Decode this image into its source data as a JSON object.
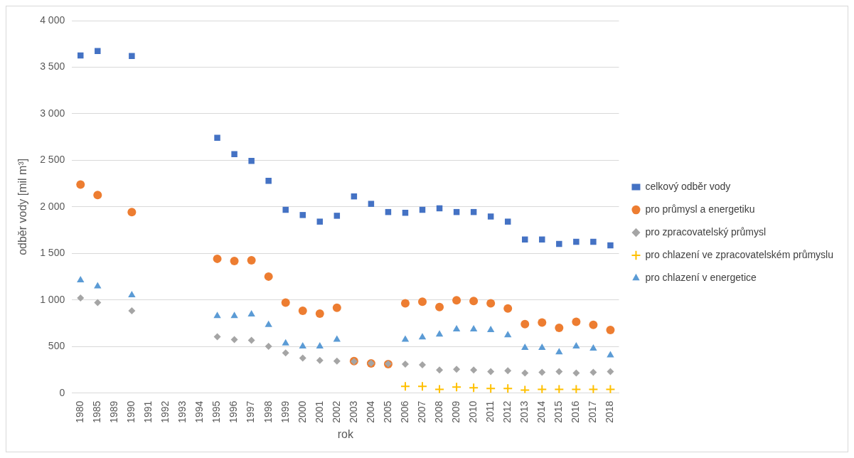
{
  "chart_data": {
    "type": "scatter",
    "xlabel": "rok",
    "ylabel": "odběr vody [mil m³]",
    "categories": [
      "1980",
      "1985",
      "1989",
      "1990",
      "1991",
      "1992",
      "1993",
      "1994",
      "1995",
      "1996",
      "1997",
      "1998",
      "1999",
      "2000",
      "2001",
      "2002",
      "2003",
      "2004",
      "2005",
      "2006",
      "2007",
      "2008",
      "2009",
      "2010",
      "2011",
      "2012",
      "2013",
      "2014",
      "2015",
      "2016",
      "2017",
      "2018"
    ],
    "series": [
      {
        "name": "celkový odběr vody",
        "color": "#4472c4",
        "marker": "square",
        "values": [
          3625,
          3673,
          null,
          3620,
          null,
          null,
          null,
          null,
          2741,
          2566,
          2494,
          2279,
          1968,
          1912,
          1841,
          1904,
          2112,
          2032,
          1944,
          1936,
          1968,
          1984,
          1944,
          1944,
          1896,
          1841,
          1649,
          1649,
          1602,
          1625,
          1625,
          1586
        ]
      },
      {
        "name": "pro průmysl a energetiku",
        "color": "#ed7d31",
        "marker": "circle",
        "values": [
          2239,
          2127,
          null,
          1944,
          null,
          null,
          null,
          null,
          1442,
          1418,
          1426,
          1251,
          972,
          884,
          853,
          916,
          343,
          319,
          311,
          964,
          980,
          924,
          996,
          988,
          964,
          908,
          741,
          757,
          701,
          765,
          733,
          677
        ]
      },
      {
        "name": "pro zpracovatelský průmysl",
        "color": "#a5a5a5",
        "marker": "diamond",
        "values": [
          1020,
          972,
          null,
          884,
          null,
          null,
          null,
          null,
          605,
          574,
          566,
          502,
          430,
          375,
          351,
          343,
          340,
          320,
          315,
          311,
          303,
          247,
          255,
          247,
          231,
          239,
          215,
          223,
          231,
          215,
          223,
          231
        ]
      },
      {
        "name": "pro chlazení ve zpracovatelském průmyslu",
        "color": "#ffc000",
        "marker": "cross",
        "values": [
          null,
          null,
          null,
          null,
          null,
          null,
          null,
          null,
          null,
          null,
          null,
          null,
          null,
          null,
          null,
          null,
          null,
          null,
          null,
          72,
          72,
          40,
          64,
          56,
          48,
          48,
          32,
          40,
          40,
          40,
          40,
          40
        ]
      },
      {
        "name": "pro chlazení v energetice",
        "color": "#5b9bd5",
        "marker": "triangle",
        "values": [
          1211,
          1147,
          null,
          1052,
          null,
          null,
          null,
          null,
          829,
          829,
          845,
          733,
          534,
          502,
          502,
          574,
          null,
          null,
          null,
          574,
          598,
          630,
          685,
          685,
          677,
          622,
          486,
          486,
          438,
          502,
          478,
          406
        ]
      }
    ],
    "ylim": [
      0,
      4000
    ],
    "yticks": [
      0,
      {
        "value": 500,
        "label": "500"
      },
      {
        "value": 1000,
        "label": "1 000"
      },
      {
        "value": 1500,
        "label": "1 500"
      },
      {
        "value": 2000,
        "label": "2 000"
      },
      {
        "value": 2500,
        "label": "2 500"
      },
      {
        "value": 3000,
        "label": "3 000"
      },
      {
        "value": 3500,
        "label": "3 500"
      },
      {
        "value": 4000,
        "label": "4 000"
      }
    ],
    "grid": "y",
    "legend": "right"
  }
}
